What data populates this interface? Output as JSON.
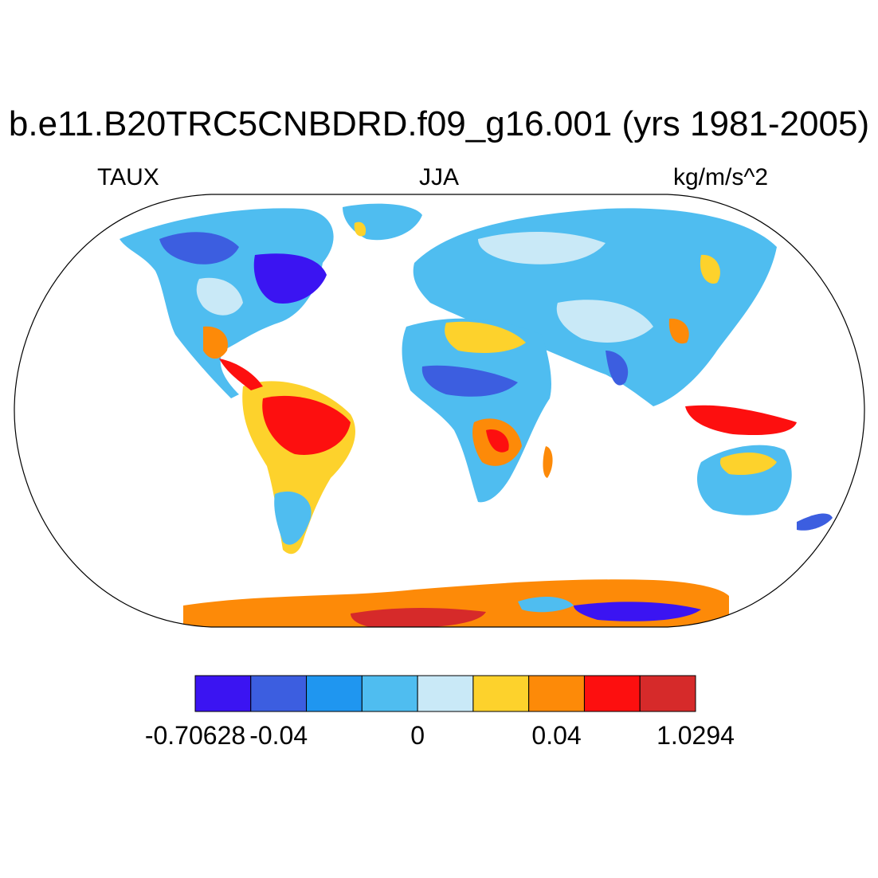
{
  "title": "b.e11.B20TRC5CNBDRD.f09_g16.001 (yrs 1981-2005)",
  "left_label": "TAUX",
  "center_label": "JJA",
  "right_label": "kg/m/s^2",
  "colorbar": {
    "colors": [
      "#3b14f2",
      "#3c5ee0",
      "#1f96f0",
      "#4fbdf0",
      "#c9e9f7",
      "#fdd22c",
      "#fd8a08",
      "#fd0f0f",
      "#d62a2a"
    ],
    "labels": [
      "-0.70628",
      "-0.04",
      "0",
      "0.04",
      "1.0294"
    ]
  }
}
